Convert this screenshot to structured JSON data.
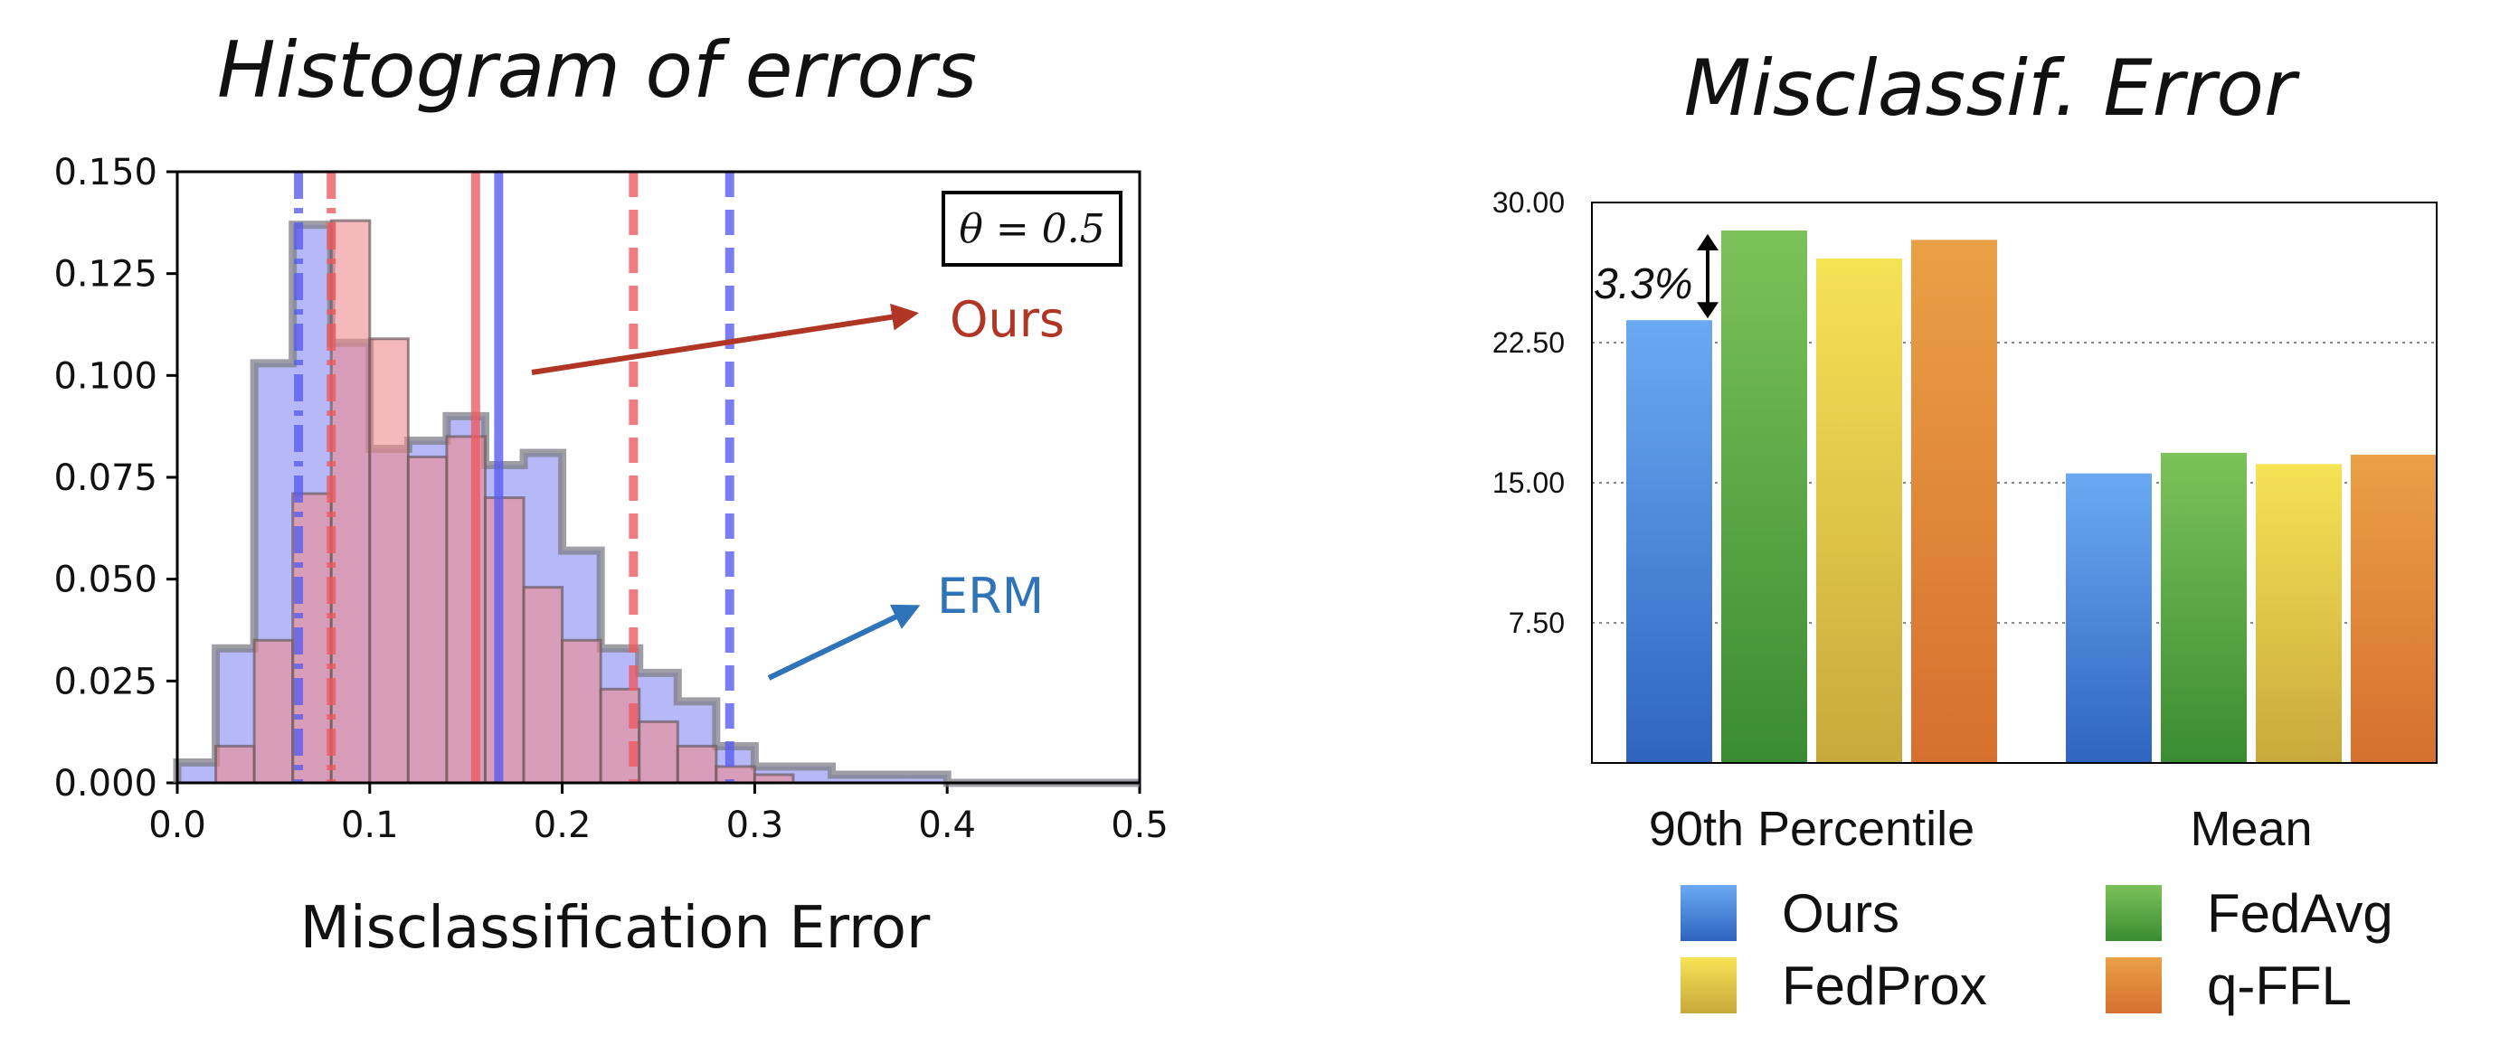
{
  "chart_data": [
    {
      "type": "histogram",
      "title": "Histogram of errors",
      "xlabel": "Misclassification Error",
      "ylabel": "",
      "xlim": [
        0.0,
        0.5
      ],
      "ylim": [
        0.0,
        0.15
      ],
      "xticks": [
        "0.0",
        "0.1",
        "0.2",
        "0.3",
        "0.4",
        "0.5"
      ],
      "yticks": [
        "0.000",
        "0.025",
        "0.050",
        "0.075",
        "0.100",
        "0.125",
        "0.150"
      ],
      "annotation_box": "θ = 0.5",
      "bin_width": 0.02,
      "series": [
        {
          "name": "ERM",
          "color": "#7a7ef2",
          "bin_start": 0.0,
          "values": [
            0.005,
            0.033,
            0.103,
            0.137,
            0.108,
            0.082,
            0.084,
            0.09,
            0.078,
            0.081,
            0.057,
            0.033,
            0.027,
            0.02,
            0.009,
            0.004,
            0.004,
            0.002,
            0.002,
            0.002,
            0.0,
            0.0,
            0.0,
            0.0,
            0.0
          ],
          "vlines": [
            {
              "x": 0.063,
              "style": "dashdot"
            },
            {
              "x": 0.167,
              "style": "solid"
            },
            {
              "x": 0.287,
              "style": "dashed"
            }
          ],
          "arrow_label": "ERM",
          "label_color": "#2f74b8"
        },
        {
          "name": "Ours",
          "color": "#ef8a8f",
          "bin_start": 0.02,
          "values": [
            0.009,
            0.035,
            0.071,
            0.138,
            0.109,
            0.08,
            0.085,
            0.07,
            0.048,
            0.035,
            0.023,
            0.015,
            0.009,
            0.004,
            0.002,
            0.0,
            0.0,
            0.0,
            0.0,
            0.0,
            0.0,
            0.0,
            0.0,
            0.0
          ],
          "vlines": [
            {
              "x": 0.08,
              "style": "dashdot"
            },
            {
              "x": 0.155,
              "style": "solid"
            },
            {
              "x": 0.237,
              "style": "dashed"
            }
          ],
          "arrow_label": "Ours",
          "label_color": "#b03524"
        }
      ]
    },
    {
      "type": "bar",
      "title": "Misclassif. Error",
      "categories": [
        "90th Percentile",
        "Mean"
      ],
      "ylim": [
        0.0,
        30.0
      ],
      "yticks": [
        "7.50",
        "15.00",
        "22.50",
        "30.00"
      ],
      "grid": true,
      "legend_position": "bottom",
      "annotation": "3.3%",
      "series": [
        {
          "name": "Ours",
          "color_top": "#6aaaf2",
          "color_bottom": "#2f64bf",
          "values": [
            23.7,
            15.5
          ]
        },
        {
          "name": "FedAvg",
          "color_top": "#7cc25a",
          "color_bottom": "#3a8c32",
          "values": [
            28.5,
            16.6
          ]
        },
        {
          "name": "FedProx",
          "color_top": "#f6e255",
          "color_bottom": "#c8a93c",
          "values": [
            27.0,
            16.0
          ]
        },
        {
          "name": "q-FFL",
          "color_top": "#eaa046",
          "color_bottom": "#d6702e",
          "values": [
            28.0,
            16.5
          ]
        }
      ]
    }
  ]
}
